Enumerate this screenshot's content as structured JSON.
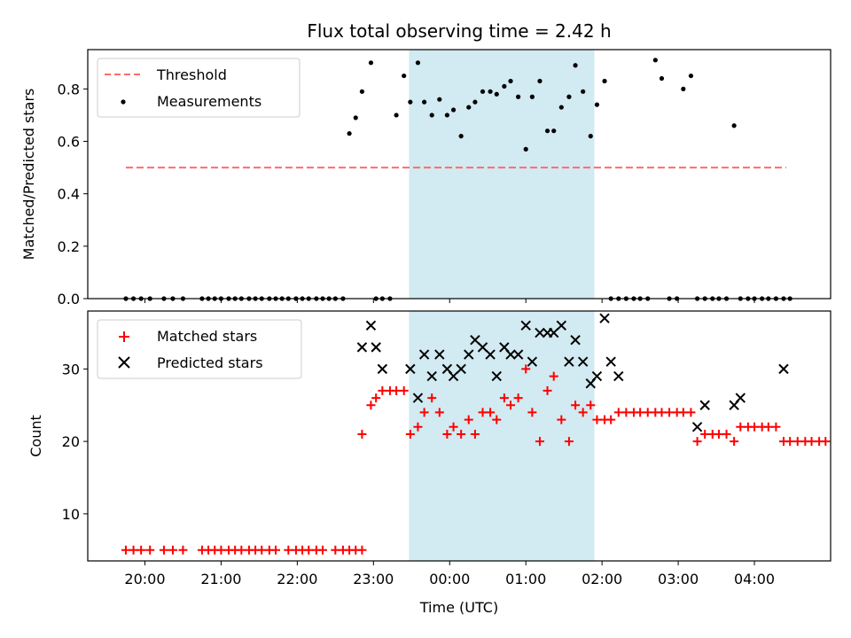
{
  "chart_data": [
    {
      "type": "scatter",
      "title": "Flux total observing time = 2.42 h",
      "xlabel": "",
      "ylabel": "Matched/Predicted stars",
      "ylim": [
        0,
        0.95
      ],
      "yticks": [
        "0.0",
        "0.2",
        "0.4",
        "0.6",
        "0.8"
      ],
      "ytick_values": [
        0,
        0.2,
        0.4,
        0.6,
        0.8
      ],
      "shaded_region": {
        "x": [
          "23:28",
          "01:54"
        ],
        "color": "#add8e6"
      },
      "legend": {
        "position": "upper-left",
        "entries": [
          "Threshold",
          "Measurements"
        ]
      },
      "series": [
        {
          "name": "Threshold",
          "kind": "dashed-line",
          "color": "#ff6b6b",
          "x": [
            "19:45",
            "04:25"
          ],
          "y": [
            0.5,
            0.5
          ]
        },
        {
          "name": "Measurements",
          "kind": "points",
          "color": "#000000",
          "x": [
            "19:45",
            "19:51",
            "19:57",
            "20:04",
            "20:15",
            "20:22",
            "20:30",
            "20:45",
            "20:50",
            "20:55",
            "21:00",
            "21:06",
            "21:11",
            "21:16",
            "21:22",
            "21:27",
            "21:32",
            "21:38",
            "21:43",
            "21:48",
            "21:53",
            "21:59",
            "22:04",
            "22:09",
            "22:15",
            "22:20",
            "22:25",
            "22:30",
            "22:36",
            "22:41",
            "22:46",
            "22:51",
            "22:58",
            "23:02",
            "23:07",
            "23:13",
            "23:18",
            "23:24",
            "23:29",
            "23:35",
            "23:40",
            "23:46",
            "23:52",
            "23:58",
            "00:03",
            "00:09",
            "00:15",
            "00:20",
            "00:26",
            "00:32",
            "00:37",
            "00:43",
            "00:48",
            "00:54",
            "01:00",
            "01:05",
            "01:11",
            "01:17",
            "01:22",
            "01:28",
            "01:34",
            "01:39",
            "01:45",
            "01:51",
            "01:56",
            "02:02",
            "02:07",
            "02:13",
            "02:19",
            "02:25",
            "02:30",
            "02:36",
            "02:42",
            "02:47",
            "02:53",
            "02:59",
            "03:04",
            "03:10",
            "03:15",
            "03:21",
            "03:27",
            "03:32",
            "03:38",
            "03:44",
            "03:49",
            "03:55",
            "04:00",
            "04:06",
            "04:11",
            "04:17",
            "04:23",
            "04:28"
          ],
          "y": [
            0,
            0,
            0,
            0,
            0,
            0,
            0,
            0,
            0,
            0,
            0,
            0,
            0,
            0,
            0,
            0,
            0,
            0,
            0,
            0,
            0,
            0,
            0,
            0,
            0,
            0,
            0,
            0,
            0,
            0.63,
            0.69,
            0.79,
            0.9,
            0,
            0,
            0,
            0.7,
            0.85,
            0.75,
            0.9,
            0.75,
            0.7,
            0.76,
            0.7,
            0.72,
            0.62,
            0.73,
            0.75,
            0.79,
            0.79,
            0.78,
            0.81,
            0.83,
            0.77,
            0.57,
            0.77,
            0.83,
            0.64,
            0.64,
            0.73,
            0.77,
            0.89,
            0.79,
            0.62,
            0.74,
            0.83,
            0,
            0,
            0,
            0,
            0,
            0,
            0.91,
            0.84,
            0,
            0,
            0.8,
            0.85,
            0,
            0,
            0,
            0,
            0,
            0.66,
            0,
            0,
            0,
            0,
            0,
            0,
            0,
            0
          ]
        }
      ]
    },
    {
      "type": "scatter",
      "title": "",
      "xlabel": "Time (UTC)",
      "ylabel": "Count",
      "ylim": [
        3.5,
        38
      ],
      "yticks": [
        "10",
        "20",
        "30"
      ],
      "ytick_values": [
        10,
        20,
        30
      ],
      "xticks": [
        "20:00",
        "21:00",
        "22:00",
        "23:00",
        "00:00",
        "01:00",
        "02:00",
        "03:00",
        "04:00"
      ],
      "shaded_region": {
        "x": [
          "23:28",
          "01:54"
        ],
        "color": "#add8e6"
      },
      "legend": {
        "position": "upper-left",
        "entries": [
          "Matched stars",
          "Predicted stars"
        ]
      },
      "series": [
        {
          "name": "Matched stars",
          "marker": "+",
          "color": "#ff0000",
          "points": [
            [
              "19:45",
              5
            ],
            [
              "19:51",
              5
            ],
            [
              "19:57",
              5
            ],
            [
              "20:04",
              5
            ],
            [
              "20:15",
              5
            ],
            [
              "20:22",
              5
            ],
            [
              "20:30",
              5
            ],
            [
              "20:45",
              5
            ],
            [
              "20:50",
              5
            ],
            [
              "20:55",
              5
            ],
            [
              "21:00",
              5
            ],
            [
              "21:06",
              5
            ],
            [
              "21:11",
              5
            ],
            [
              "21:16",
              5
            ],
            [
              "21:22",
              5
            ],
            [
              "21:27",
              5
            ],
            [
              "21:32",
              5
            ],
            [
              "21:38",
              5
            ],
            [
              "21:43",
              5
            ],
            [
              "21:53",
              5
            ],
            [
              "21:59",
              5
            ],
            [
              "22:04",
              5
            ],
            [
              "22:09",
              5
            ],
            [
              "22:15",
              5
            ],
            [
              "22:20",
              5
            ],
            [
              "22:30",
              5
            ],
            [
              "22:36",
              5
            ],
            [
              "22:41",
              5
            ],
            [
              "22:46",
              5
            ],
            [
              "22:51",
              5
            ],
            [
              "22:51",
              21
            ],
            [
              "22:58",
              25
            ],
            [
              "23:02",
              26
            ],
            [
              "23:07",
              27
            ],
            [
              "23:13",
              27
            ],
            [
              "23:18",
              27
            ],
            [
              "23:24",
              27
            ],
            [
              "23:29",
              21
            ],
            [
              "23:35",
              22
            ],
            [
              "23:40",
              24
            ],
            [
              "23:46",
              26
            ],
            [
              "23:52",
              24
            ],
            [
              "23:58",
              21
            ],
            [
              "00:03",
              22
            ],
            [
              "00:09",
              21
            ],
            [
              "00:15",
              23
            ],
            [
              "00:20",
              21
            ],
            [
              "00:26",
              24
            ],
            [
              "00:32",
              24
            ],
            [
              "00:37",
              23
            ],
            [
              "00:43",
              26
            ],
            [
              "00:48",
              25
            ],
            [
              "00:54",
              26
            ],
            [
              "01:00",
              30
            ],
            [
              "01:05",
              24
            ],
            [
              "01:11",
              20
            ],
            [
              "01:17",
              27
            ],
            [
              "01:22",
              29
            ],
            [
              "01:28",
              23
            ],
            [
              "01:34",
              20
            ],
            [
              "01:39",
              25
            ],
            [
              "01:45",
              24
            ],
            [
              "01:51",
              25
            ],
            [
              "01:56",
              23
            ],
            [
              "02:02",
              23
            ],
            [
              "02:07",
              23
            ],
            [
              "02:13",
              24
            ],
            [
              "02:19",
              24
            ],
            [
              "02:25",
              24
            ],
            [
              "02:30",
              24
            ],
            [
              "02:36",
              24
            ],
            [
              "02:42",
              24
            ],
            [
              "02:47",
              24
            ],
            [
              "02:53",
              24
            ],
            [
              "02:59",
              24
            ],
            [
              "03:04",
              24
            ],
            [
              "03:10",
              24
            ],
            [
              "03:15",
              20
            ],
            [
              "03:21",
              21
            ],
            [
              "03:27",
              21
            ],
            [
              "03:32",
              21
            ],
            [
              "03:38",
              21
            ],
            [
              "03:44",
              20
            ],
            [
              "03:49",
              22
            ],
            [
              "03:55",
              22
            ],
            [
              "04:00",
              22
            ],
            [
              "04:06",
              22
            ],
            [
              "04:11",
              22
            ],
            [
              "04:17",
              22
            ],
            [
              "04:23",
              20
            ],
            [
              "04:28",
              20
            ],
            [
              "04:34",
              20
            ],
            [
              "04:40",
              20
            ],
            [
              "04:45",
              20
            ],
            [
              "04:51",
              20
            ],
            [
              "04:56",
              20
            ],
            [
              "05:02",
              20
            ],
            [
              "05:07",
              20
            ]
          ]
        },
        {
          "name": "Predicted stars",
          "marker": "x",
          "color": "#000000",
          "points": [
            [
              "22:51",
              33
            ],
            [
              "22:58",
              36
            ],
            [
              "23:02",
              33
            ],
            [
              "23:07",
              30
            ],
            [
              "23:29",
              30
            ],
            [
              "23:35",
              26
            ],
            [
              "23:40",
              32
            ],
            [
              "23:46",
              29
            ],
            [
              "23:52",
              32
            ],
            [
              "23:58",
              30
            ],
            [
              "00:03",
              29
            ],
            [
              "00:09",
              30
            ],
            [
              "00:15",
              32
            ],
            [
              "00:20",
              34
            ],
            [
              "00:26",
              33
            ],
            [
              "00:32",
              32
            ],
            [
              "00:37",
              29
            ],
            [
              "00:43",
              33
            ],
            [
              "00:48",
              32
            ],
            [
              "00:54",
              32
            ],
            [
              "01:00",
              36
            ],
            [
              "01:05",
              31
            ],
            [
              "01:11",
              35
            ],
            [
              "01:17",
              35
            ],
            [
              "01:22",
              35
            ],
            [
              "01:28",
              36
            ],
            [
              "01:34",
              31
            ],
            [
              "01:39",
              34
            ],
            [
              "01:45",
              31
            ],
            [
              "01:51",
              28
            ],
            [
              "01:56",
              29
            ],
            [
              "02:02",
              37
            ],
            [
              "02:07",
              31
            ],
            [
              "02:13",
              29
            ],
            [
              "03:15",
              22
            ],
            [
              "03:21",
              25
            ],
            [
              "03:44",
              25
            ],
            [
              "03:49",
              26
            ],
            [
              "04:23",
              30
            ]
          ]
        }
      ]
    }
  ]
}
